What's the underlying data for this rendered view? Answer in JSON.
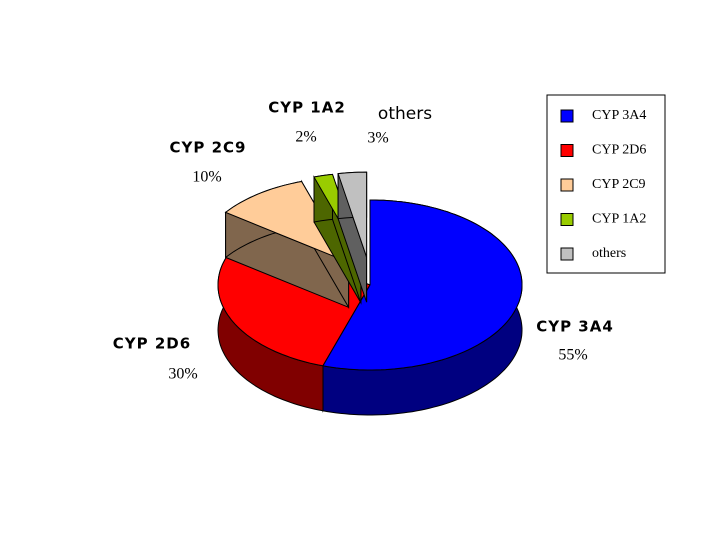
{
  "chart_data": {
    "type": "pie3d",
    "categories": [
      "CYP 3A4",
      "CYP 2D6",
      "CYP 2C9",
      "CYP 1A2",
      "others"
    ],
    "values": [
      55,
      30,
      10,
      2,
      3
    ],
    "value_labels": [
      "55%",
      "30%",
      "10%",
      "2%",
      "3%"
    ],
    "colors": [
      "#0000ff",
      "#ff0000",
      "#ffcc99",
      "#99cc00",
      "#c0c0c0"
    ],
    "exploded": [
      false,
      false,
      true,
      true,
      true
    ],
    "legend": "right"
  }
}
